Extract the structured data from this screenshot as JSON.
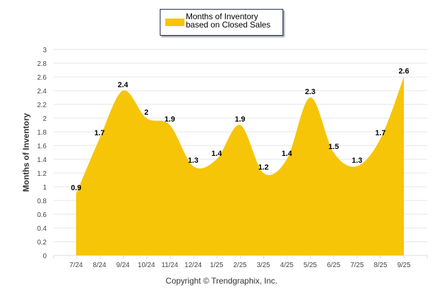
{
  "chart_data": {
    "type": "area",
    "title": "",
    "xlabel": "",
    "ylabel": "Months of Inventory",
    "ylim": [
      0,
      3
    ],
    "yticks": [
      "0",
      "0.2",
      "0.4",
      "0.6",
      "0.8",
      "1",
      "1.2",
      "1.4",
      "1.6",
      "1.8",
      "2",
      "2.2",
      "2.4",
      "2.6",
      "2.8",
      "3"
    ],
    "grid": true,
    "legend_position": "top-center",
    "categories": [
      "7/24",
      "8/24",
      "9/24",
      "10/24",
      "11/24",
      "12/24",
      "1/25",
      "2/25",
      "3/25",
      "4/25",
      "5/25",
      "6/25",
      "7/25",
      "8/25",
      "9/25"
    ],
    "series": [
      {
        "name": "Months of Inventory based on Closed Sales",
        "color": "#f7c507",
        "values": [
          0.9,
          1.7,
          2.4,
          2,
          1.9,
          1.3,
          1.4,
          1.9,
          1.2,
          1.4,
          2.3,
          1.5,
          1.3,
          1.7,
          2.6
        ]
      }
    ],
    "footer": "Copyright © Trendgraphix, Inc."
  }
}
